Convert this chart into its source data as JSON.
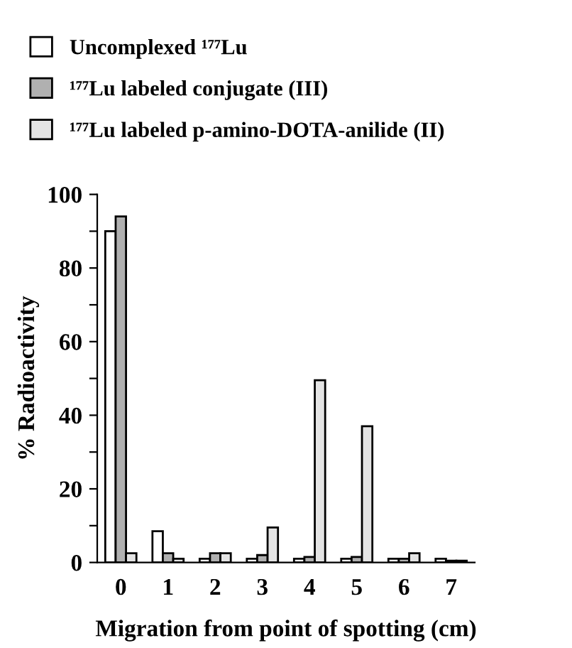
{
  "chart_data": {
    "type": "bar",
    "xlabel": "Migration from point of spotting (cm)",
    "ylabel": "% Radioactivity",
    "categories": [
      "0",
      "1",
      "2",
      "3",
      "4",
      "5",
      "6",
      "7"
    ],
    "series": [
      {
        "name": "Uncomplexed ¹⁷⁷Lu",
        "color": "#ffffff",
        "values": [
          90,
          8.5,
          1,
          1,
          1,
          1,
          1,
          1
        ]
      },
      {
        "name": "¹⁷⁷Lu labeled conjugate (III)",
        "color": "#b0b0b0",
        "values": [
          94,
          2.5,
          2.5,
          2,
          1.5,
          1.5,
          1,
          0.5
        ]
      },
      {
        "name": "¹⁷⁷Lu labeled p-amino-DOTA-anilide (II)",
        "color": "#e4e4e4",
        "values": [
          2.5,
          1,
          2.5,
          9.5,
          49.5,
          37,
          2.5,
          0.5
        ]
      }
    ],
    "ylim": [
      0,
      100
    ],
    "yticks": [
      0,
      {
        "value": 10,
        "label": null
      },
      20,
      {
        "value": 30,
        "label": null
      },
      40,
      {
        "value": 50,
        "label": null
      },
      60,
      {
        "value": 70,
        "label": null
      },
      80,
      {
        "value": 90,
        "label": null
      },
      100
    ],
    "grid": false,
    "legend": "top left"
  }
}
